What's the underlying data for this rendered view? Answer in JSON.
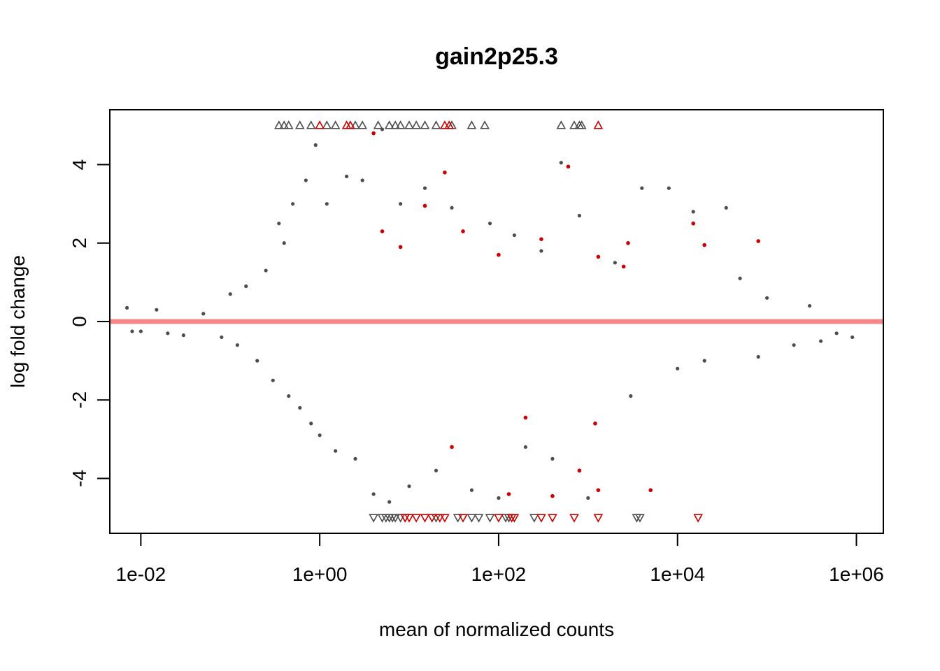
{
  "chart_data": {
    "type": "scatter",
    "title": "gain2p25.3",
    "xlabel": "mean of normalized counts",
    "ylabel": "log fold change",
    "x_scale": "log10",
    "xlim": [
      0.0045,
      2000000
    ],
    "ylim": [
      -5.4,
      5.4
    ],
    "x_ticks": [
      {
        "value": 0.01,
        "label": "1e-02"
      },
      {
        "value": 1,
        "label": "1e+00"
      },
      {
        "value": 100,
        "label": "1e+02"
      },
      {
        "value": 10000,
        "label": "1e+04"
      },
      {
        "value": 1000000,
        "label": "1e+06"
      }
    ],
    "y_ticks": [
      {
        "value": -4,
        "label": "-4"
      },
      {
        "value": -2,
        "label": "-2"
      },
      {
        "value": 0,
        "label": "0"
      },
      {
        "value": 2,
        "label": "2"
      },
      {
        "value": 4,
        "label": "4"
      }
    ],
    "reference_line": {
      "y": 0,
      "color": "#f47a7a"
    },
    "grid": false,
    "legend": "none",
    "colors": {
      "not_significant": "#4d4d4d",
      "significant": "#cc0000"
    },
    "point_clamp": 5,
    "series": [
      {
        "values_note_free": true,
        "points": [
          [
            0.007,
            0.35
          ],
          [
            0.008,
            -0.25
          ],
          [
            0.01,
            -0.25
          ],
          [
            0.015,
            0.3
          ],
          [
            0.02,
            -0.3
          ],
          [
            0.03,
            -0.35
          ],
          [
            0.05,
            0.2
          ],
          [
            0.08,
            -0.4
          ],
          [
            0.1,
            0.7
          ],
          [
            0.12,
            -0.6
          ],
          [
            0.15,
            0.9
          ],
          [
            0.2,
            -1.0
          ],
          [
            0.25,
            1.3
          ],
          [
            0.3,
            -1.5
          ],
          [
            0.35,
            2.5
          ],
          [
            0.4,
            2.0
          ],
          [
            0.45,
            -1.9
          ],
          [
            0.5,
            3.0
          ],
          [
            0.6,
            -2.2
          ],
          [
            0.7,
            3.6
          ],
          [
            0.8,
            -2.6
          ],
          [
            0.9,
            4.5
          ],
          [
            1.0,
            -2.9
          ],
          [
            1.2,
            3.0
          ],
          [
            1.5,
            -3.3
          ],
          [
            2.0,
            3.7
          ],
          [
            2.5,
            -3.5
          ],
          [
            3.0,
            3.6
          ],
          [
            4.0,
            -4.4
          ],
          [
            5.0,
            4.9
          ],
          [
            6.0,
            -4.6
          ],
          [
            8.0,
            3.0
          ],
          [
            10.0,
            -4.2
          ],
          [
            15.0,
            3.4
          ],
          [
            20.0,
            -3.8
          ],
          [
            30.0,
            2.9
          ],
          [
            50.0,
            -4.3
          ],
          [
            80.0,
            2.5
          ],
          [
            100.0,
            -4.5
          ],
          [
            150.0,
            2.2
          ],
          [
            200.0,
            -3.2
          ],
          [
            300.0,
            1.8
          ],
          [
            400.0,
            -3.5
          ],
          [
            500.0,
            4.05
          ],
          [
            800.0,
            2.7
          ],
          [
            1000.0,
            -4.5
          ],
          [
            2000.0,
            1.5
          ],
          [
            3000.0,
            -1.9
          ],
          [
            4000.0,
            3.4
          ],
          [
            5000.0,
            -4.3
          ],
          [
            8000.0,
            3.4
          ],
          [
            10000.0,
            -1.2
          ],
          [
            15000.0,
            2.8
          ],
          [
            20000.0,
            -1.0
          ],
          [
            35000.0,
            2.9
          ],
          [
            50000.0,
            1.1
          ],
          [
            80000.0,
            -0.9
          ],
          [
            100000.0,
            0.6
          ],
          [
            200000.0,
            -0.6
          ],
          [
            300000.0,
            0.4
          ],
          [
            400000.0,
            -0.5
          ],
          [
            600000.0,
            -0.3
          ],
          [
            900000.0,
            -0.4
          ]
        ],
        "name": ""
      },
      {
        "points": [
          [
            4.0,
            4.8
          ],
          [
            5.0,
            2.3
          ],
          [
            8.0,
            1.9
          ],
          [
            15.0,
            2.95
          ],
          [
            25.0,
            3.8
          ],
          [
            30.0,
            -3.2
          ],
          [
            40.0,
            2.3
          ],
          [
            100.0,
            1.7
          ],
          [
            130.0,
            -4.4
          ],
          [
            200.0,
            -2.45
          ],
          [
            300.0,
            2.1
          ],
          [
            400.0,
            -4.45
          ],
          [
            600.0,
            3.95
          ],
          [
            800.0,
            -3.8
          ],
          [
            1200.0,
            -2.6
          ],
          [
            1300.0,
            -4.3
          ],
          [
            1300.0,
            1.65
          ],
          [
            2500.0,
            1.4
          ],
          [
            2800.0,
            2.0
          ],
          [
            5000.0,
            -4.3
          ],
          [
            15000.0,
            2.5
          ],
          [
            20000.0,
            1.95
          ],
          [
            80000.0,
            2.05
          ]
        ],
        "name": ""
      }
    ],
    "clamped_up": {
      "not_significant": [
        0.35,
        0.4,
        0.45,
        0.6,
        0.8,
        1.2,
        1.5,
        2.5,
        3.0,
        4.5,
        6.0,
        7.0,
        8.0,
        10.0,
        12.0,
        15.0,
        20.0,
        30.0,
        50.0,
        70.0,
        500.0,
        700.0,
        800.0,
        850.0
      ],
      "significant": [
        1.0,
        2.0,
        2.2,
        25.0,
        28.0,
        1300.0
      ]
    },
    "clamped_down": {
      "not_significant": [
        4.0,
        5.0,
        5.5,
        6.0,
        6.5,
        7.0,
        8.0,
        9.0,
        20.0,
        35.0,
        50.0,
        60.0,
        80.0,
        120.0,
        130.0,
        250.0,
        3500.0,
        3800.0
      ],
      "significant": [
        9.0,
        10.0,
        12.0,
        15.0,
        18.0,
        22.0,
        25.0,
        40.0,
        100.0,
        140.0,
        150.0,
        300.0,
        400.0,
        700.0,
        1300.0,
        17000.0
      ]
    }
  }
}
